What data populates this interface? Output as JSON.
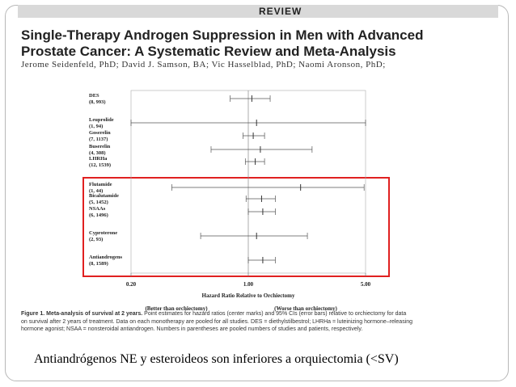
{
  "header": {
    "section": "REVIEW",
    "title_line1": "Single-Therapy Androgen Suppression in Men with Advanced",
    "title_line2": "Prostate Cancer: A Systematic Review and Meta-Analysis",
    "authors": "Jerome Seidenfeld, PhD; David J. Samson, BA; Vic Hasselblad, PhD; Naomi Aronson, PhD;"
  },
  "chart_data": {
    "type": "forest",
    "xlabel": "Hazard Ratio Relative to Orchiectomy",
    "x_scale": "log",
    "x_ticks": [
      "0.20",
      "1.00",
      "5.00"
    ],
    "x_tick_values": [
      0.2,
      1.0,
      5.0
    ],
    "sub_labels": [
      "(Better than orchiectomy)",
      "(Worse than orchiectomy)"
    ],
    "rows": [
      {
        "name": "DES",
        "n": "(8, 993)",
        "estimate": 1.05,
        "ci_low": 0.78,
        "ci_high": 1.35
      },
      {
        "name": "Leuprolide",
        "n": "(1, 94)",
        "estimate": 1.12,
        "ci_low": 0.2,
        "ci_high": 5.0
      },
      {
        "name": "Goserelin",
        "n": "(7, 1137)",
        "estimate": 1.07,
        "ci_low": 0.93,
        "ci_high": 1.25
      },
      {
        "name": "Buserelin",
        "n": "(4, 308)",
        "estimate": 1.18,
        "ci_low": 0.6,
        "ci_high": 2.4
      },
      {
        "name": "LHRHa",
        "n": "(12, 1539)",
        "estimate": 1.1,
        "ci_low": 0.96,
        "ci_high": 1.25
      },
      {
        "name": "Flutamide",
        "n": "(1, 44)",
        "estimate": 2.05,
        "ci_low": 0.35,
        "ci_high": 4.9
      },
      {
        "name": "Bicalutamide",
        "n": "(5, 1452)",
        "estimate": 1.2,
        "ci_low": 0.97,
        "ci_high": 1.45
      },
      {
        "name": "NSAAs",
        "n": "(6, 1496)",
        "estimate": 1.22,
        "ci_low": 1.0,
        "ci_high": 1.45
      },
      {
        "name": "Cyproterone",
        "n": "(2, 93)",
        "estimate": 1.12,
        "ci_low": 0.52,
        "ci_high": 2.25
      },
      {
        "name": "Antiandrogens",
        "n": "(8, 1589)",
        "estimate": 1.22,
        "ci_low": 1.0,
        "ci_high": 1.45
      }
    ]
  },
  "figure": {
    "label": "Figure 1.",
    "caption_title": "Meta-analysis of survival at 2 years.",
    "caption_line1": "Point estimates for hazard ratios (center marks) and 95% CIs (error bars) relative to orchiectomy for data",
    "caption_line2": "on survival after 2 years of treatment. Data on each monotherapy are pooled for all studies. DES = diethylstilbestrol; LHRHa = luteinizing hormone–releasing",
    "caption_line3": "hormone agonist; NSAA = nonsteroidal antiandrogen. Numbers in parentheses are pooled numbers of studies and patients, respectively."
  },
  "highlight_color": "#e02020",
  "slide_text": "Antiandrógenos NE y esteroideos son inferiores a orquiectomia (<SV)"
}
